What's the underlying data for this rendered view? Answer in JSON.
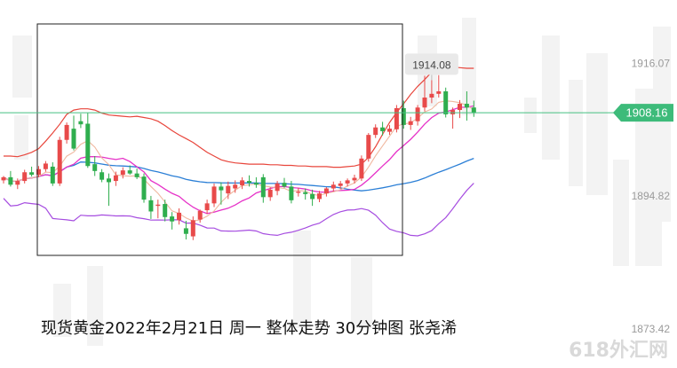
{
  "caption": "现货黄金2022年2月21日 周一 整体走势  30分钟图  张尧浠",
  "watermark": "618外汇网",
  "colors": {
    "up": "#e84a4a",
    "down": "#2fae4e",
    "ma_fast": "#f0b8a0",
    "ma_mid": "#e632c8",
    "ma_slow": "#2b7fd6",
    "bb_upper": "#e8463c",
    "bb_lower": "#a64de0",
    "current_price_line": "#45c082",
    "current_price_bg": "#3dbb7a",
    "axis_text": "#9a9a9a"
  },
  "chart_data": {
    "type": "candlestick",
    "title": "",
    "ylim": [
      1870,
      1922
    ],
    "y_ticks": [
      1916.07,
      1894.82,
      1873.42
    ],
    "current_price": 1908.16,
    "annotation": {
      "label": "1914.08",
      "candle_index": 61
    },
    "grid": false,
    "candles": [
      [
        1897.3,
        1898.0,
        1896.8,
        1897.8
      ],
      [
        1897.8,
        1898.8,
        1896.3,
        1896.6
      ],
      [
        1896.6,
        1897.6,
        1895.9,
        1897.2
      ],
      [
        1897.2,
        1899.0,
        1896.8,
        1898.6
      ],
      [
        1898.6,
        1899.5,
        1897.9,
        1898.2
      ],
      [
        1898.2,
        1899.6,
        1897.8,
        1899.1
      ],
      [
        1899.1,
        1900.4,
        1898.7,
        1900.0
      ],
      [
        1899.5,
        1900.2,
        1896.4,
        1896.8
      ],
      [
        1896.8,
        1904.3,
        1896.4,
        1903.8
      ],
      [
        1903.8,
        1906.6,
        1903.2,
        1906.2
      ],
      [
        1905.6,
        1907.7,
        1902.1,
        1902.4
      ],
      [
        1906.8,
        1908.0,
        1905.7,
        1906.3
      ],
      [
        1906.4,
        1908.1,
        1899.3,
        1899.6
      ],
      [
        1899.9,
        1901.2,
        1898.0,
        1898.8
      ],
      [
        1898.6,
        1899.1,
        1897.0,
        1897.4
      ],
      [
        1897.6,
        1898.4,
        1893.2,
        1897.0
      ],
      [
        1897.2,
        1898.7,
        1896.4,
        1898.1
      ],
      [
        1898.2,
        1899.4,
        1897.6,
        1898.9
      ],
      [
        1898.9,
        1899.7,
        1898.2,
        1898.4
      ],
      [
        1898.4,
        1899.2,
        1897.5,
        1897.8
      ],
      [
        1897.9,
        1898.4,
        1893.7,
        1894.2
      ],
      [
        1894.1,
        1894.8,
        1891.1,
        1892.3
      ],
      [
        1893.2,
        1894.2,
        1891.2,
        1893.4
      ],
      [
        1893.5,
        1894.2,
        1890.7,
        1891.4
      ],
      [
        1891.5,
        1892.2,
        1889.4,
        1890.7
      ],
      [
        1890.9,
        1892.8,
        1890.2,
        1892.1
      ],
      [
        1889.6,
        1890.8,
        1887.8,
        1888.7
      ],
      [
        1888.3,
        1891.5,
        1887.7,
        1890.9
      ],
      [
        1891.0,
        1892.6,
        1890.5,
        1892.4
      ],
      [
        1892.5,
        1894.2,
        1891.9,
        1893.6
      ],
      [
        1893.6,
        1896.8,
        1893.0,
        1896.3
      ],
      [
        1896.3,
        1897.0,
        1893.4,
        1895.7
      ],
      [
        1895.2,
        1897.1,
        1894.3,
        1896.4
      ],
      [
        1896.0,
        1897.3,
        1895.3,
        1896.6
      ],
      [
        1896.5,
        1897.8,
        1895.9,
        1897.3
      ],
      [
        1897.2,
        1898.1,
        1896.3,
        1896.9
      ],
      [
        1896.9,
        1897.8,
        1896.1,
        1896.6
      ],
      [
        1897.8,
        1898.3,
        1893.7,
        1894.6
      ],
      [
        1894.6,
        1896.2,
        1894.0,
        1895.8
      ],
      [
        1895.6,
        1897.2,
        1894.9,
        1896.8
      ],
      [
        1896.9,
        1897.7,
        1896.1,
        1896.3
      ],
      [
        1896.3,
        1897.2,
        1893.6,
        1894.1
      ],
      [
        1895.3,
        1896.1,
        1894.7,
        1895.5
      ],
      [
        1895.4,
        1896.0,
        1894.2,
        1895.1
      ],
      [
        1895.1,
        1895.8,
        1893.2,
        1894.3
      ],
      [
        1894.3,
        1895.6,
        1893.8,
        1895.2
      ],
      [
        1895.2,
        1896.2,
        1894.7,
        1896.0
      ],
      [
        1896.0,
        1897.1,
        1895.5,
        1896.6
      ],
      [
        1896.4,
        1897.2,
        1895.9,
        1896.8
      ],
      [
        1896.8,
        1897.6,
        1896.3,
        1897.3
      ],
      [
        1897.3,
        1898.2,
        1896.8,
        1897.7
      ],
      [
        1897.6,
        1901.3,
        1897.2,
        1900.8
      ],
      [
        1900.8,
        1904.9,
        1900.3,
        1904.6
      ],
      [
        1904.6,
        1906.3,
        1904.1,
        1905.8
      ],
      [
        1905.8,
        1906.7,
        1904.5,
        1905.2
      ],
      [
        1905.1,
        1906.2,
        1904.6,
        1905.6
      ],
      [
        1905.5,
        1909.4,
        1905.0,
        1908.9
      ],
      [
        1908.9,
        1910.1,
        1905.6,
        1906.2
      ],
      [
        1906.2,
        1907.5,
        1905.4,
        1906.8
      ],
      [
        1906.8,
        1909.4,
        1906.1,
        1909.0
      ],
      [
        1909.0,
        1914.1,
        1908.4,
        1910.6
      ],
      [
        1910.6,
        1913.4,
        1909.7,
        1911.2
      ],
      [
        1911.2,
        1914.2,
        1910.6,
        1911.6
      ],
      [
        1911.6,
        1912.2,
        1907.4,
        1907.9
      ],
      [
        1907.9,
        1909.0,
        1905.6,
        1908.6
      ],
      [
        1908.6,
        1910.2,
        1907.3,
        1909.6
      ],
      [
        1909.6,
        1911.6,
        1906.9,
        1909.0
      ],
      [
        1909.0,
        1910.1,
        1907.5,
        1908.16
      ]
    ],
    "bollinger": {
      "upper": [
        1901.2,
        1901.2,
        1901.1,
        1901.4,
        1901.8,
        1902.4,
        1903.6,
        1904.9,
        1906.3,
        1907.9,
        1908.6,
        1908.8,
        1908.8,
        1908.6,
        1908.1,
        1907.8,
        1907.7,
        1907.6,
        1907.5,
        1907.6,
        1907.4,
        1907.2,
        1906.8,
        1906.1,
        1905.3,
        1904.6,
        1904.0,
        1903.4,
        1902.6,
        1901.8,
        1901.2,
        1900.6,
        1900.3,
        1900.1,
        1900.0,
        1899.9,
        1899.9,
        1899.9,
        1899.8,
        1899.8,
        1899.7,
        1899.7,
        1899.6,
        1899.6,
        1899.5,
        1899.5,
        1899.5,
        1899.4,
        1899.4,
        1899.5,
        1899.6,
        1899.9,
        1901.0,
        1902.7,
        1904.7,
        1906.6,
        1908.2,
        1909.6,
        1911.1,
        1912.4,
        1913.5,
        1914.7,
        1915.2,
        1915.5,
        1915.5,
        1915.4,
        1915.3,
        1915.3
      ]
    },
    "x_tick_labels": [],
    "xlabel": "",
    "ylabel": ""
  }
}
